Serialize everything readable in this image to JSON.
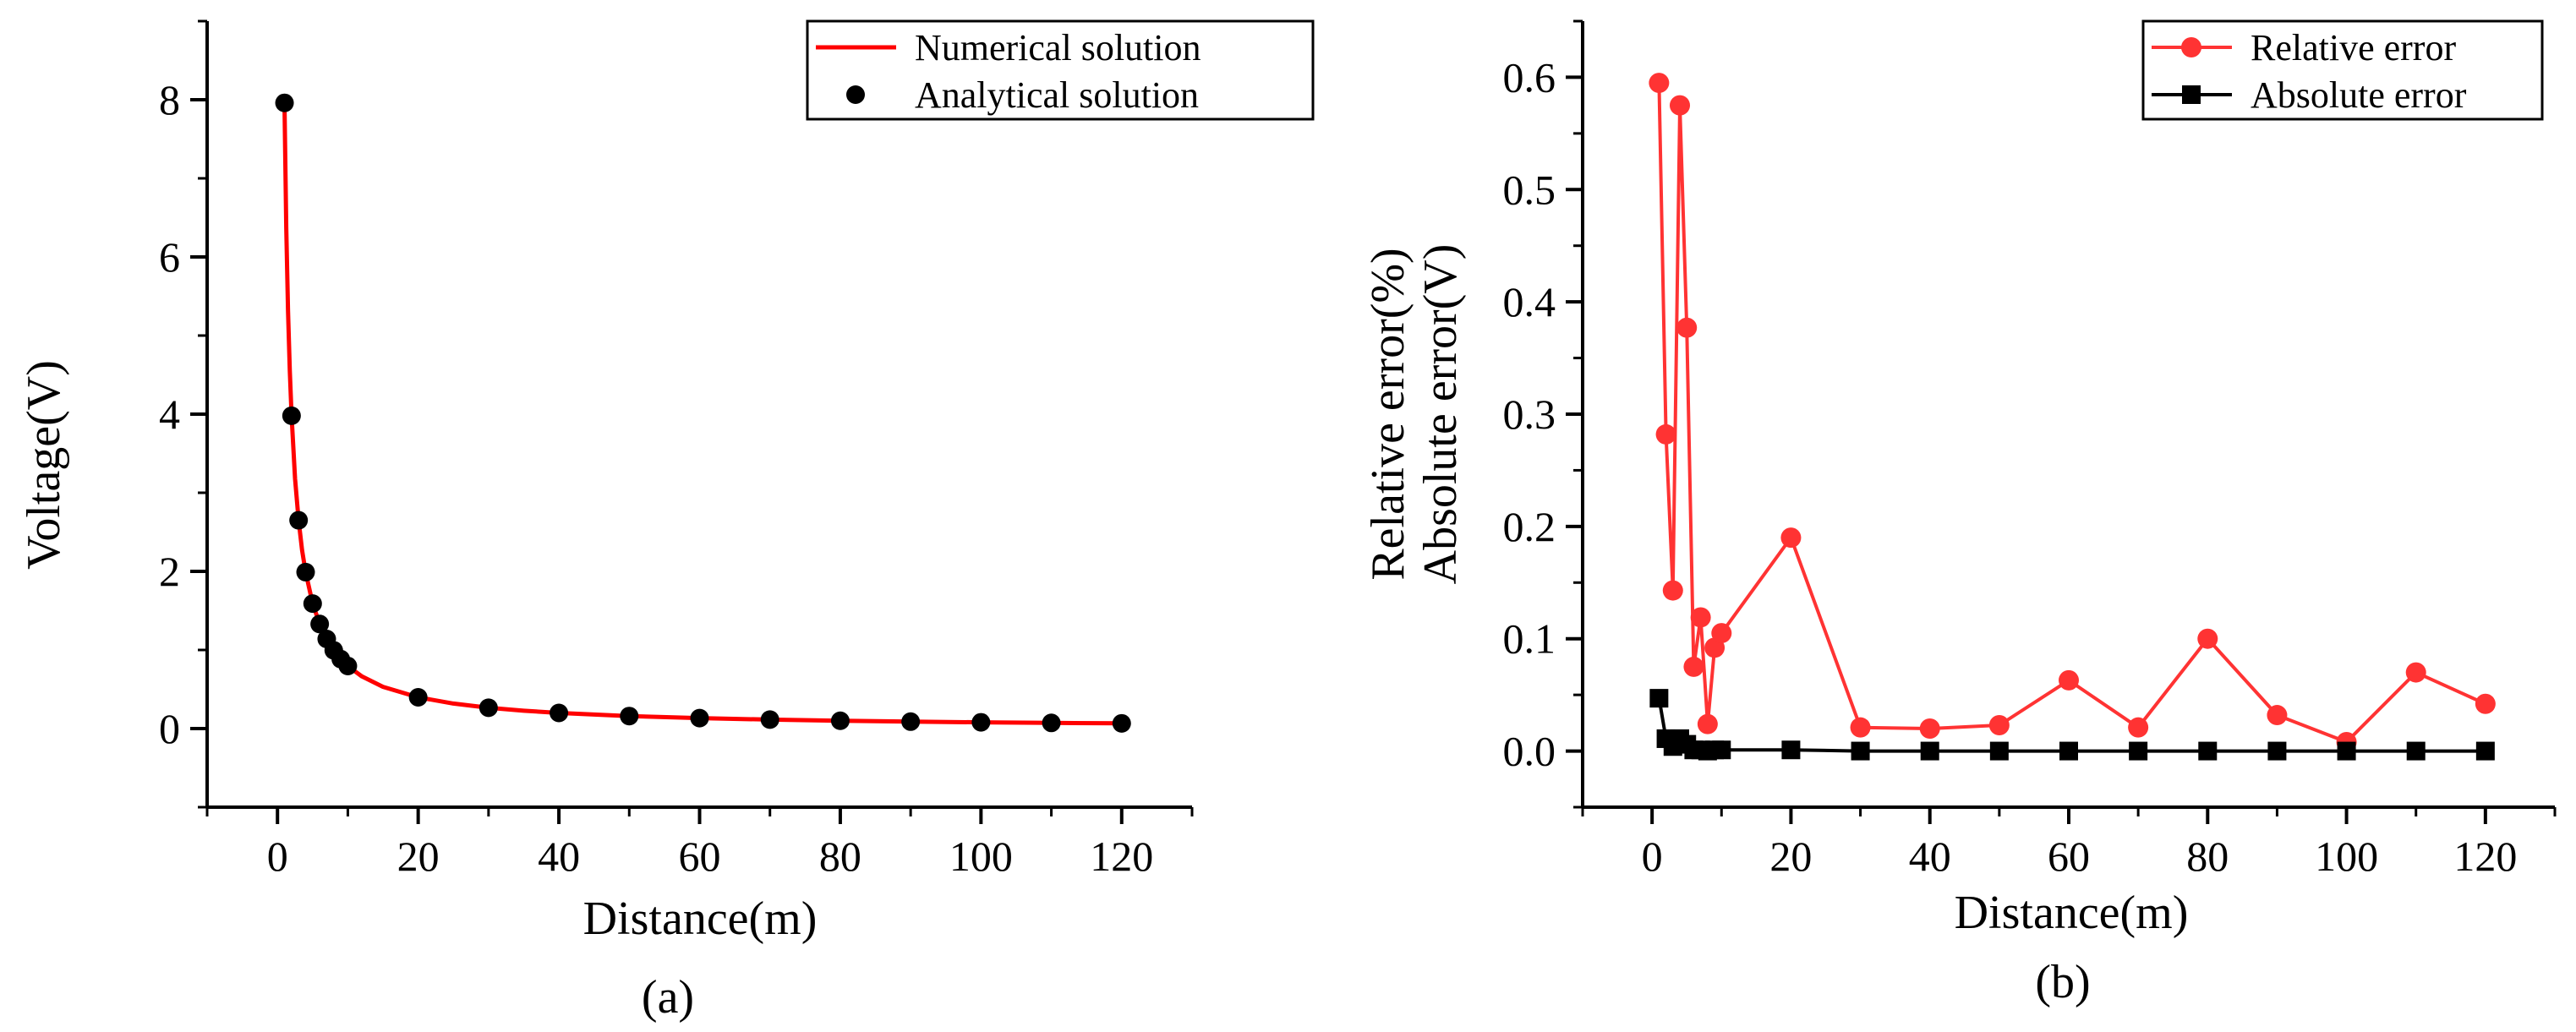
{
  "chart_data": [
    {
      "id": "a",
      "type": "line",
      "caption": "(a)",
      "xlabel": "Distance(m)",
      "ylabel": "Voltage(V)",
      "xlim": [
        -10,
        130
      ],
      "ylim": [
        -1,
        9
      ],
      "xticks": [
        0,
        20,
        40,
        60,
        80,
        100,
        120
      ],
      "xtick_labels": [
        "0",
        "20",
        "40",
        "60",
        "80",
        "100",
        "120"
      ],
      "yticks": [
        0,
        2,
        4,
        6,
        8
      ],
      "ytick_labels": [
        "0",
        "2",
        "4",
        "6",
        "8"
      ],
      "legend_position": "top-right",
      "series": [
        {
          "name": "Numerical solution",
          "kind": "line",
          "color": "#ff0000",
          "x": [
            1,
            1.25,
            1.5,
            1.75,
            2,
            2.5,
            3,
            3.5,
            4,
            5,
            6,
            7,
            8,
            9,
            10,
            12,
            15,
            20,
            25,
            30,
            35,
            40,
            50,
            60,
            70,
            80,
            90,
            100,
            110,
            120
          ],
          "y": [
            7.96,
            6.37,
            5.31,
            4.55,
            3.98,
            3.18,
            2.65,
            2.27,
            1.99,
            1.59,
            1.33,
            1.14,
            0.995,
            0.884,
            0.796,
            0.663,
            0.531,
            0.398,
            0.318,
            0.265,
            0.227,
            0.199,
            0.159,
            0.133,
            0.114,
            0.0995,
            0.0884,
            0.0796,
            0.0723,
            0.0663
          ]
        },
        {
          "name": "Analytical solution",
          "kind": "scatter",
          "color": "#000000",
          "x": [
            1,
            2,
            3,
            4,
            5,
            6,
            7,
            8,
            9,
            10,
            20,
            30,
            40,
            50,
            60,
            70,
            80,
            90,
            100,
            110,
            120
          ],
          "y": [
            7.96,
            3.98,
            2.65,
            1.99,
            1.59,
            1.33,
            1.14,
            0.995,
            0.884,
            0.796,
            0.398,
            0.265,
            0.199,
            0.159,
            0.133,
            0.114,
            0.0995,
            0.0884,
            0.0796,
            0.0723,
            0.0663
          ]
        }
      ]
    },
    {
      "id": "b",
      "type": "line",
      "caption": "(b)",
      "xlabel": "Distance(m)",
      "ylabel_lines": [
        "Relative error(%)",
        "Absolute error(V)"
      ],
      "xlim": [
        -10,
        130
      ],
      "ylim": [
        -0.05,
        0.65
      ],
      "xticks": [
        0,
        20,
        40,
        60,
        80,
        100,
        120
      ],
      "xtick_labels": [
        "0",
        "20",
        "40",
        "60",
        "80",
        "100",
        "120"
      ],
      "yticks": [
        0.0,
        0.1,
        0.2,
        0.3,
        0.4,
        0.5,
        0.6
      ],
      "ytick_labels": [
        "0.0",
        "0.1",
        "0.2",
        "0.3",
        "0.4",
        "0.5",
        "0.6"
      ],
      "legend_position": "top-right",
      "series": [
        {
          "name": "Relative error",
          "marker": "circle",
          "color": "#ff3333",
          "x": [
            1,
            2,
            3,
            4,
            5,
            6,
            7,
            8,
            9,
            10,
            20,
            30,
            40,
            50,
            60,
            70,
            80,
            90,
            100,
            110,
            120
          ],
          "y": [
            0.595,
            0.282,
            0.143,
            0.575,
            0.377,
            0.075,
            0.119,
            0.024,
            0.092,
            0.105,
            0.19,
            0.021,
            0.02,
            0.023,
            0.063,
            0.021,
            0.1,
            0.032,
            0.008,
            0.07,
            0.042
          ]
        },
        {
          "name": "Absolute error",
          "marker": "square",
          "color": "#000000",
          "x": [
            1,
            2,
            3,
            4,
            5,
            6,
            7,
            8,
            9,
            10,
            20,
            30,
            40,
            50,
            60,
            70,
            80,
            90,
            100,
            110,
            120
          ],
          "y": [
            0.047,
            0.011,
            0.004,
            0.011,
            0.006,
            0.001,
            0.001,
            0.0,
            0.001,
            0.001,
            0.001,
            0.0,
            0.0,
            0.0,
            0.0,
            0.0,
            0.0,
            0.0,
            0.0,
            0.0,
            0.0
          ]
        }
      ]
    }
  ]
}
